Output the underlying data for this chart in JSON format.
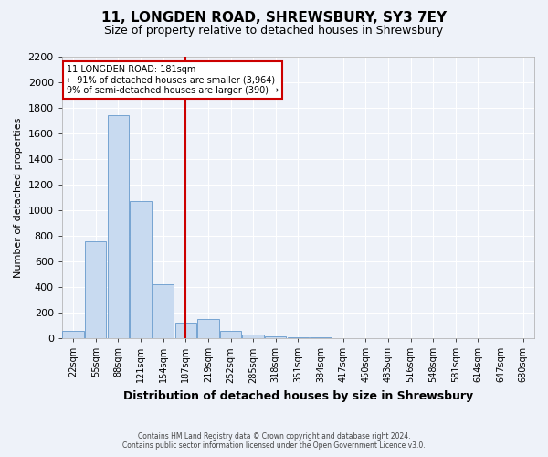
{
  "title": "11, LONGDEN ROAD, SHREWSBURY, SY3 7EY",
  "subtitle": "Size of property relative to detached houses in Shrewsbury",
  "xlabel": "Distribution of detached houses by size in Shrewsbury",
  "ylabel": "Number of detached properties",
  "footnote1": "Contains HM Land Registry data © Crown copyright and database right 2024.",
  "footnote2": "Contains public sector information licensed under the Open Government Licence v3.0.",
  "annotation_line1": "11 LONGDEN ROAD: 181sqm",
  "annotation_line2": "← 91% of detached houses are smaller (3,964)",
  "annotation_line3": "9% of semi-detached houses are larger (390) →",
  "bar_labels": [
    "22sqm",
    "55sqm",
    "88sqm",
    "121sqm",
    "154sqm",
    "187sqm",
    "219sqm",
    "252sqm",
    "285sqm",
    "318sqm",
    "351sqm",
    "384sqm",
    "417sqm",
    "450sqm",
    "483sqm",
    "516sqm",
    "548sqm",
    "581sqm",
    "614sqm",
    "647sqm",
    "680sqm"
  ],
  "bar_values": [
    60,
    760,
    1740,
    1070,
    420,
    120,
    150,
    60,
    30,
    15,
    5,
    5,
    0,
    0,
    0,
    0,
    0,
    0,
    0,
    0,
    0
  ],
  "bar_color": "#c8daf0",
  "bar_edge_color": "#6699cc",
  "vline_x_index": 5,
  "vline_color": "#cc0000",
  "ylim": [
    0,
    2200
  ],
  "yticks": [
    0,
    200,
    400,
    600,
    800,
    1000,
    1200,
    1400,
    1600,
    1800,
    2000,
    2200
  ],
  "background_color": "#eef2f9",
  "plot_bg_color": "#eef2f9",
  "grid_color": "#ffffff",
  "title_fontsize": 11,
  "subtitle_fontsize": 9,
  "xlabel_fontsize": 9,
  "ylabel_fontsize": 8,
  "tick_fontsize": 7,
  "annotation_box_color": "#cc0000",
  "annotation_bg_color": "#ffffff"
}
